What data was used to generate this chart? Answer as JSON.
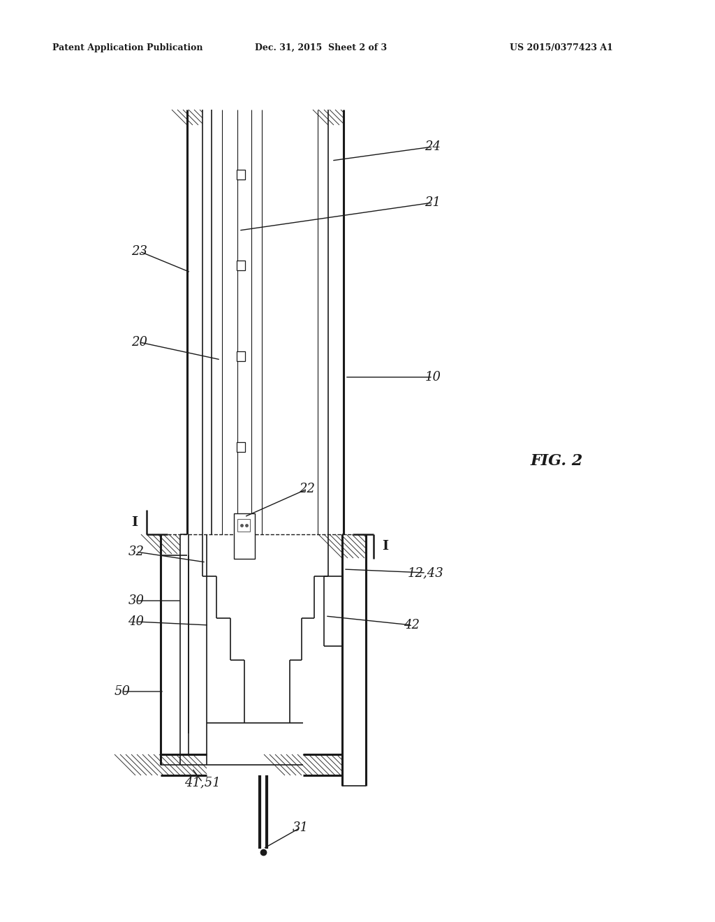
{
  "background": "#ffffff",
  "line_color": "#1a1a1a",
  "header_left": "Patent Application Publication",
  "header_mid": "Dec. 31, 2015  Sheet 2 of 3",
  "header_right": "US 2015/0377423 A1",
  "fig_label": "FIG. 2",
  "lw_outer": 2.2,
  "lw_inner": 1.2,
  "lw_thin": 0.8,
  "hatch_lw": 0.7,
  "label_fontsize": 13
}
